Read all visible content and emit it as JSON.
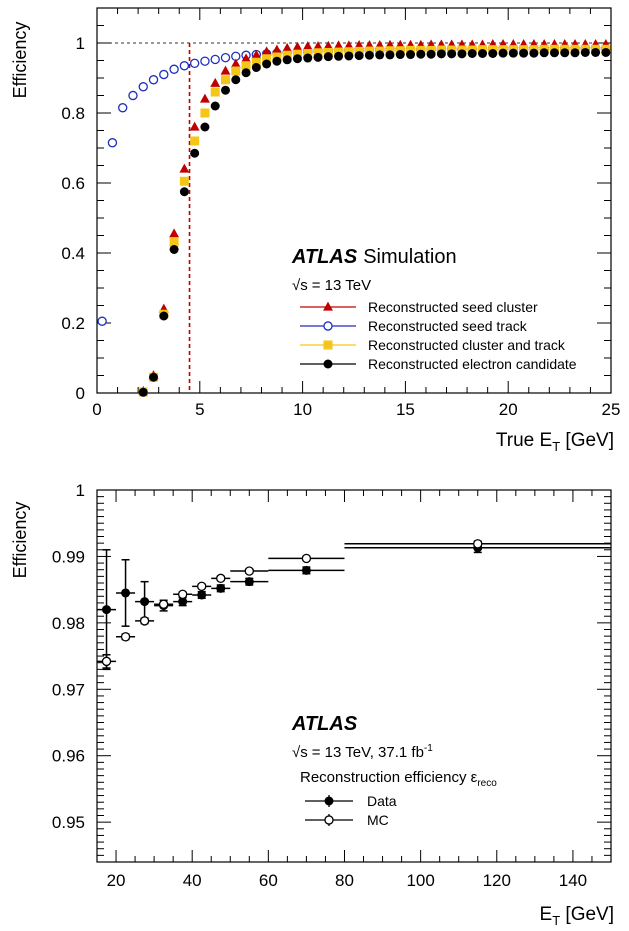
{
  "chart_data": [
    {
      "type": "scatter",
      "xlabel": "True E",
      "xlabel_sub": "T",
      "xlabel_unit": " [GeV]",
      "ylabel": "Efficiency",
      "xlim": [
        0,
        25
      ],
      "ylim": [
        0,
        1.1
      ],
      "xticks": [
        0,
        5,
        10,
        15,
        20,
        25
      ],
      "yticks": [
        0,
        0.2,
        0.4,
        0.6,
        0.8,
        1
      ],
      "reference_line_y": 1,
      "threshold_x": 4.5,
      "annotations": {
        "atlas": "ATLAS",
        "simulation": "Simulation",
        "sqrt": "√s",
        "energy": "= 13 TeV"
      },
      "legend_position": "bottom-right",
      "series": [
        {
          "name": "Reconstructed seed cluster",
          "marker": "triangle",
          "color": "#c00000",
          "x": [
            2.25,
            2.75,
            3.25,
            3.75,
            4.25,
            4.75,
            5.25,
            5.75,
            6.25,
            6.75,
            7.25,
            7.75,
            8.25,
            8.75,
            9.25,
            9.75,
            10.25,
            10.75,
            11.25,
            11.75,
            12.25,
            12.75,
            13.25,
            13.75,
            14.25,
            14.75,
            15.25,
            15.75,
            16.25,
            16.75,
            17.25,
            17.75,
            18.25,
            18.75,
            19.25,
            19.75,
            20.25,
            20.75,
            21.25,
            21.75,
            22.25,
            22.75,
            23.25,
            23.75,
            24.25,
            24.75
          ],
          "y": [
            0.005,
            0.05,
            0.24,
            0.455,
            0.64,
            0.76,
            0.84,
            0.885,
            0.92,
            0.94,
            0.955,
            0.965,
            0.975,
            0.98,
            0.985,
            0.988,
            0.99,
            0.99,
            0.991,
            0.992,
            0.992,
            0.993,
            0.993,
            0.993,
            0.994,
            0.994,
            0.994,
            0.994,
            0.995,
            0.995,
            0.995,
            0.995,
            0.995,
            0.995,
            0.996,
            0.996,
            0.996,
            0.996,
            0.996,
            0.996,
            0.996,
            0.996,
            0.996,
            0.996,
            0.996,
            0.996
          ]
        },
        {
          "name": "Reconstructed seed track",
          "marker": "open-circle",
          "color": "#1f2fbf",
          "x": [
            0.25,
            0.75,
            1.25,
            1.75,
            2.25,
            2.75,
            3.25,
            3.75,
            4.25,
            4.75,
            5.25,
            5.75,
            6.25,
            6.75,
            7.25,
            7.75,
            8.25,
            8.75,
            9.25,
            9.75,
            10.25,
            10.75,
            11.25,
            11.75,
            12.25,
            12.75,
            13.25,
            13.75,
            14.25,
            14.75,
            15.25,
            15.75,
            16.25,
            16.75,
            17.25,
            17.75,
            18.25,
            18.75,
            19.25,
            19.75,
            20.25,
            20.75,
            21.25,
            21.75,
            22.25,
            22.75,
            23.25,
            23.75,
            24.25,
            24.75
          ],
          "y": [
            0.205,
            0.715,
            0.815,
            0.85,
            0.875,
            0.895,
            0.91,
            0.925,
            0.935,
            0.942,
            0.948,
            0.953,
            0.958,
            0.962,
            0.965,
            0.967,
            0.969,
            0.971,
            0.972,
            0.973,
            0.974,
            0.975,
            0.976,
            0.977,
            0.977,
            0.978,
            0.978,
            0.979,
            0.979,
            0.979,
            0.98,
            0.98,
            0.98,
            0.98,
            0.981,
            0.981,
            0.981,
            0.981,
            0.981,
            0.982,
            0.982,
            0.982,
            0.982,
            0.982,
            0.982,
            0.982,
            0.983,
            0.983,
            0.983,
            0.983
          ]
        },
        {
          "name": "Reconstructed cluster and track",
          "marker": "square",
          "color": "#f5c518",
          "x": [
            2.25,
            2.75,
            3.25,
            3.75,
            4.25,
            4.75,
            5.25,
            5.75,
            6.25,
            6.75,
            7.25,
            7.75,
            8.25,
            8.75,
            9.25,
            9.75,
            10.25,
            10.75,
            11.25,
            11.75,
            12.25,
            12.75,
            13.25,
            13.75,
            14.25,
            14.75,
            15.25,
            15.75,
            16.25,
            16.75,
            17.25,
            17.75,
            18.25,
            18.75,
            19.25,
            19.75,
            20.25,
            20.75,
            21.25,
            21.75,
            22.25,
            22.75,
            23.25,
            23.75,
            24.25,
            24.75
          ],
          "y": [
            0.003,
            0.045,
            0.225,
            0.43,
            0.605,
            0.72,
            0.8,
            0.86,
            0.895,
            0.92,
            0.935,
            0.945,
            0.955,
            0.96,
            0.965,
            0.968,
            0.97,
            0.972,
            0.973,
            0.974,
            0.975,
            0.976,
            0.977,
            0.977,
            0.978,
            0.978,
            0.979,
            0.979,
            0.979,
            0.98,
            0.98,
            0.98,
            0.98,
            0.981,
            0.981,
            0.981,
            0.981,
            0.981,
            0.981,
            0.982,
            0.982,
            0.982,
            0.982,
            0.982,
            0.982,
            0.982
          ]
        },
        {
          "name": "Reconstructed electron candidate",
          "marker": "filled-circle",
          "color": "#000000",
          "x": [
            2.25,
            2.75,
            3.25,
            3.75,
            4.25,
            4.75,
            5.25,
            5.75,
            6.25,
            6.75,
            7.25,
            7.75,
            8.25,
            8.75,
            9.25,
            9.75,
            10.25,
            10.75,
            11.25,
            11.75,
            12.25,
            12.75,
            13.25,
            13.75,
            14.25,
            14.75,
            15.25,
            15.75,
            16.25,
            16.75,
            17.25,
            17.75,
            18.25,
            18.75,
            19.25,
            19.75,
            20.25,
            20.75,
            21.25,
            21.75,
            22.25,
            22.75,
            23.25,
            23.75,
            24.25,
            24.75
          ],
          "y": [
            0.002,
            0.045,
            0.22,
            0.41,
            0.575,
            0.685,
            0.76,
            0.82,
            0.865,
            0.895,
            0.915,
            0.93,
            0.94,
            0.948,
            0.952,
            0.955,
            0.957,
            0.959,
            0.961,
            0.962,
            0.963,
            0.964,
            0.965,
            0.966,
            0.966,
            0.967,
            0.967,
            0.968,
            0.968,
            0.969,
            0.969,
            0.969,
            0.97,
            0.97,
            0.97,
            0.971,
            0.971,
            0.971,
            0.971,
            0.972,
            0.972,
            0.972,
            0.972,
            0.973,
            0.973,
            0.973
          ]
        }
      ]
    },
    {
      "type": "scatter",
      "xlabel": "E",
      "xlabel_sub": "T",
      "xlabel_unit": " [GeV]",
      "ylabel": "Efficiency",
      "xlim": [
        15,
        150
      ],
      "ylim": [
        0.944,
        1
      ],
      "xticks": [
        20,
        40,
        60,
        80,
        100,
        120,
        140
      ],
      "yticks": [
        0.95,
        0.96,
        0.97,
        0.98,
        0.99,
        1
      ],
      "annotations": {
        "atlas": "ATLAS",
        "sqrt": "√s",
        "energy": "= 13 TeV, 37.1 fb",
        "lumi_sup": "-1",
        "reco_label": "Reconstruction efficiency ε",
        "reco_sub": "reco"
      },
      "legend_position": "bottom-center",
      "series": [
        {
          "name": "Data",
          "marker": "filled-circle",
          "color": "#000000",
          "x": [
            17.5,
            22.5,
            27.5,
            32.5,
            37.5,
            42.5,
            47.5,
            55,
            70,
            115
          ],
          "xerr": [
            2.5,
            2.5,
            2.5,
            2.5,
            2.5,
            2.5,
            2.5,
            5,
            10,
            35
          ],
          "y": [
            0.982,
            0.9845,
            0.9832,
            0.9826,
            0.9832,
            0.9842,
            0.9852,
            0.9862,
            0.9879,
            0.9913
          ],
          "yerr": [
            0.009,
            0.005,
            0.003,
            0.0008,
            0.0006,
            0.0005,
            0.0005,
            0.0005,
            0.0005,
            0.0007
          ]
        },
        {
          "name": "MC",
          "marker": "open-circle",
          "color": "#000000",
          "x": [
            17.5,
            22.5,
            27.5,
            32.5,
            37.5,
            42.5,
            47.5,
            55,
            70,
            115
          ],
          "xerr": [
            2.5,
            2.5,
            2.5,
            2.5,
            2.5,
            2.5,
            2.5,
            5,
            10,
            35
          ],
          "y": [
            0.9742,
            0.9779,
            0.9803,
            0.9828,
            0.9843,
            0.9855,
            0.9867,
            0.9878,
            0.9897,
            0.9919
          ],
          "yerr": [
            0.001,
            0.0004,
            0.0004,
            0.0003,
            0.0003,
            0.0003,
            0.0003,
            0.0003,
            0.0003,
            0.0004
          ]
        }
      ]
    }
  ]
}
